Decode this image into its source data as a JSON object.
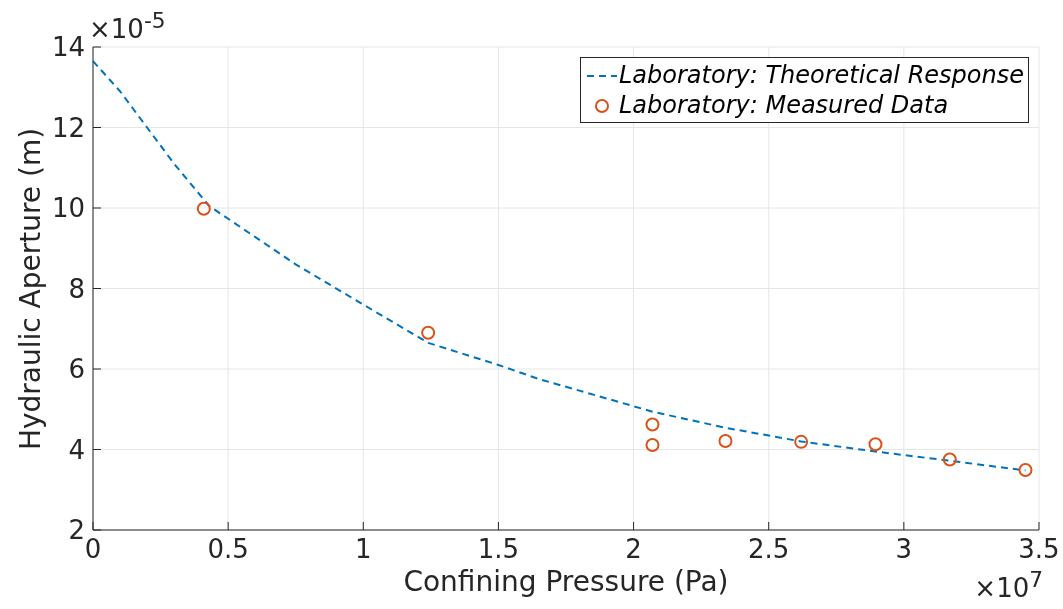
{
  "chart_data": {
    "type": "scatter",
    "xlabel": "Confining Pressure (Pa)",
    "ylabel": "Hydraulic Aperture (m)",
    "annotations": [
      "×10$^{-5}$",
      "×10$^{7}$"
    ],
    "xlim": [
      0,
      3.5
    ],
    "xticks": [
      0,
      0.5,
      1,
      1.5,
      2,
      2.5,
      3,
      3.5
    ],
    "ylim": [
      2,
      14
    ],
    "yticks": [
      2,
      4,
      6,
      8,
      10,
      12,
      14
    ],
    "grid": true,
    "legend": "top right",
    "series": [
      {
        "name": "Laboratory: Theoretical Response",
        "type": "line",
        "color": "#0072bd",
        "line_style": "dashed",
        "marker": "none",
        "x": [
          0,
          0.1,
          0.2,
          0.3,
          0.43,
          0.75,
          1.0,
          1.24,
          1.5,
          1.65,
          2.07,
          2.34,
          2.62,
          2.895,
          3.17,
          3.45
        ],
        "values": [
          13.65,
          12.9,
          12.0,
          11.1,
          10.05,
          8.6,
          7.6,
          6.65,
          6.1,
          5.75,
          4.94,
          4.54,
          4.2,
          3.95,
          3.72,
          3.48
        ]
      },
      {
        "name": "Laboratory: Measured Data",
        "color": "#d95319",
        "marker": "circle",
        "x": [
          0.41,
          1.24,
          2.07,
          2.07,
          2.34,
          2.62,
          2.895,
          3.17,
          3.45
        ],
        "values": [
          9.98,
          6.9,
          4.62,
          4.11,
          4.21,
          4.19,
          4.13,
          3.75,
          3.49
        ]
      }
    ]
  }
}
